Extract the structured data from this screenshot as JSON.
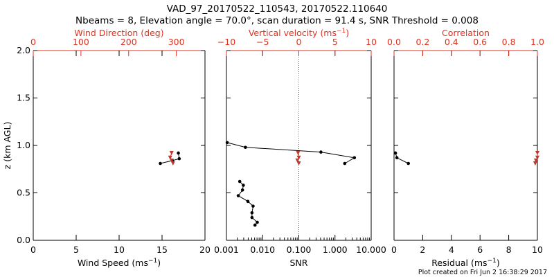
{
  "title": {
    "line1": "VAD_97_20170522_110543, 20170522.110640",
    "line2": "Nbeams = 8, Elevation angle = 70.0°, scan duration = 91.4 s, SNR Threshold = 0.008"
  },
  "footer": "Plot created on Fri Jun  2 16:38:29 2017",
  "colors": {
    "axis": "#000000",
    "secondary": "#e0301e",
    "trace": "#000000",
    "marker_secondary": "#c0392b"
  },
  "chart_data": [
    {
      "type": "line",
      "ylabel_parts": [
        "z (km AGL)"
      ],
      "ylim": [
        0,
        2.0
      ],
      "yticks": [
        0.0,
        0.5,
        1.0,
        1.5,
        2.0
      ],
      "ytick_labels": [
        "0.0",
        "0.5",
        "1.0",
        "1.5",
        "2.0"
      ],
      "bottom_axis": {
        "label_parts": [
          "Wind Speed (ms",
          "−1",
          ")"
        ],
        "xlim": [
          0,
          20
        ],
        "scale": "linear",
        "ticks": [
          0,
          5,
          10,
          15,
          20
        ],
        "tick_labels": [
          "0",
          "5",
          "10",
          "15",
          "20"
        ]
      },
      "top_axis": {
        "label_parts": [
          "Wind Direction (deg)"
        ],
        "xlim": [
          0,
          360
        ],
        "scale": "linear",
        "ticks": [
          0,
          100,
          200,
          300
        ],
        "tick_labels": [
          "0",
          "100",
          "200",
          "300"
        ]
      },
      "series": [
        {
          "axis": "bottom",
          "marker": "dot",
          "points": [
            [
              14.8,
              0.81
            ],
            [
              16.2,
              0.84
            ],
            [
              17.0,
              0.86
            ],
            [
              16.9,
              0.92
            ]
          ]
        },
        {
          "axis": "top",
          "marker": "triangle-down",
          "points": [
            [
              293,
              0.81
            ],
            [
              290,
              0.84
            ],
            [
              287,
              0.87
            ],
            [
              290,
              0.92
            ]
          ]
        }
      ]
    },
    {
      "type": "line",
      "ylim": [
        0,
        2.0
      ],
      "yticks": [
        0.0,
        0.5,
        1.0,
        1.5,
        2.0
      ],
      "bottom_axis": {
        "label_parts": [
          "SNR"
        ],
        "xlim": [
          0.001,
          10.0
        ],
        "scale": "log",
        "ticks": [
          0.001,
          0.01,
          0.1,
          1.0,
          10.0
        ],
        "tick_labels": [
          "0.001",
          "0.010",
          "0.100",
          "1.000",
          "10.000"
        ]
      },
      "top_axis": {
        "label_parts": [
          "Vertical velocity (ms",
          "−1",
          ")"
        ],
        "xlim": [
          -10,
          10
        ],
        "scale": "linear",
        "ticks": [
          -10,
          -5,
          0,
          5,
          10
        ],
        "tick_labels": [
          "−10",
          "−5",
          "0",
          "5",
          "10"
        ]
      },
      "reference_line": {
        "axis": "top",
        "x": 0
      },
      "series": [
        {
          "axis": "bottom",
          "marker": "dot",
          "points": [
            [
              0.00615,
              0.16
            ],
            [
              0.00711,
              0.19
            ],
            [
              0.00508,
              0.24
            ],
            [
              0.00508,
              0.29
            ],
            [
              0.00545,
              0.36
            ],
            [
              0.00392,
              0.41
            ],
            [
              0.00212,
              0.47
            ],
            [
              0.00278,
              0.53
            ],
            [
              0.00293,
              0.58
            ],
            [
              0.00233,
              0.62
            ]
          ]
        },
        {
          "axis": "bottom",
          "marker": "dot",
          "points": [
            [
              1.86,
              0.81
            ],
            [
              3.44,
              0.87
            ],
            [
              0.408,
              0.93
            ],
            [
              0.00334,
              0.98
            ],
            [
              0.00105,
              1.03
            ]
          ]
        },
        {
          "axis": "top",
          "marker": "triangle-down",
          "points": [
            [
              0.0,
              0.81
            ],
            [
              -0.2,
              0.84
            ],
            [
              0.0,
              0.87
            ],
            [
              -0.1,
              0.92
            ]
          ]
        }
      ]
    },
    {
      "type": "line",
      "ylim": [
        0,
        2.0
      ],
      "yticks": [
        0.0,
        0.5,
        1.0,
        1.5,
        2.0
      ],
      "bottom_axis": {
        "label_parts": [
          "Residual (ms",
          "−1",
          ")"
        ],
        "xlim": [
          0,
          10
        ],
        "scale": "linear",
        "ticks": [
          0,
          2,
          4,
          6,
          8,
          10
        ],
        "tick_labels": [
          "0",
          "2",
          "4",
          "6",
          "8",
          "10"
        ]
      },
      "top_axis": {
        "label_parts": [
          "Correlation"
        ],
        "xlim": [
          0.0,
          1.0
        ],
        "scale": "linear",
        "ticks": [
          0.0,
          0.2,
          0.4,
          0.6,
          0.8,
          1.0
        ],
        "tick_labels": [
          "0.0",
          "0.2",
          "0.4",
          "0.6",
          "0.8",
          "1.0"
        ]
      },
      "series": [
        {
          "axis": "bottom",
          "marker": "dot",
          "points": [
            [
              1.0,
              0.81
            ],
            [
              0.2,
              0.87
            ],
            [
              0.1,
              0.92
            ]
          ]
        },
        {
          "axis": "top",
          "marker": "triangle-down",
          "points": [
            [
              0.985,
              0.81
            ],
            [
              0.99,
              0.84
            ],
            [
              1.0,
              0.87
            ],
            [
              1.0,
              0.92
            ]
          ]
        }
      ]
    }
  ]
}
